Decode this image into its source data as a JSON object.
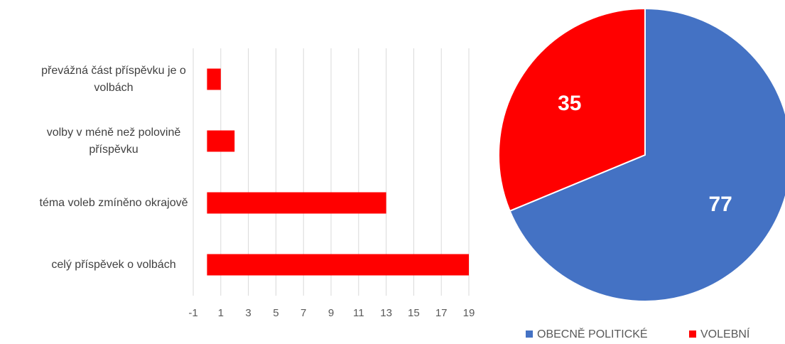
{
  "chart_data": [
    {
      "type": "barh",
      "categories": [
        "převážná část příspěvku je o volbách",
        "volby v méně než polovině příspěvku",
        "téma voleb zmíněno okrajově",
        "celý příspěvek o volbách"
      ],
      "values": [
        1,
        2,
        13,
        19
      ],
      "color": "#ff0000",
      "xlim": [
        -1,
        19
      ],
      "xticks": [
        -1,
        1,
        3,
        5,
        7,
        9,
        11,
        13,
        15,
        17,
        19
      ],
      "grid": true
    },
    {
      "type": "pie",
      "categories": [
        "OBECNĚ POLITICKÉ",
        "VOLEBNÍ"
      ],
      "values": [
        77,
        35
      ],
      "colors": [
        "#4472c4",
        "#ff0000"
      ],
      "legend": "bottom"
    }
  ]
}
